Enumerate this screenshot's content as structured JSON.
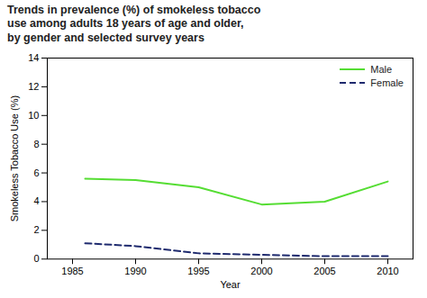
{
  "chart_data": {
    "type": "line",
    "title": "Trends in prevalence (%) of smokeless tobacco\nuse among adults 18 years of age and older,\nby gender and selected survey years",
    "xlabel": "Year",
    "ylabel": "Smokeless Tobacco Use (%)",
    "x": [
      1986,
      1990,
      1995,
      2000,
      2005,
      2010
    ],
    "series": [
      {
        "name": "Male",
        "color": "#55dd33",
        "line_style": "solid",
        "values": [
          5.6,
          5.5,
          5.0,
          3.8,
          4.0,
          5.4
        ]
      },
      {
        "name": "Female",
        "color": "#1e2a6e",
        "line_style": "dashed",
        "values": [
          1.1,
          0.9,
          0.4,
          0.3,
          0.2,
          0.2
        ]
      }
    ],
    "xlim": [
      1983,
      2012
    ],
    "xticks": [
      1985,
      1990,
      1995,
      2000,
      2005,
      2010
    ],
    "ylim": [
      0,
      14
    ],
    "yticks": [
      0,
      2,
      4,
      6,
      8,
      10,
      12,
      14
    ],
    "grid": false,
    "legend": "upper right"
  }
}
